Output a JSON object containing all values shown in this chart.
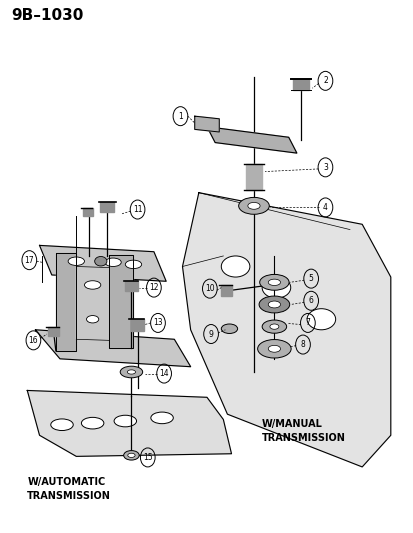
{
  "title": "9B–1030",
  "bg_color": "#ffffff",
  "text_color": "#000000",
  "label_w_auto": "W/AUTOMATIC\nTRANSMISSION",
  "label_w_manual": "W/MANUAL\nTRANSMISSION",
  "title_fontsize": 11,
  "label_fontsize": 7,
  "part_num_fontsize": 6.5
}
